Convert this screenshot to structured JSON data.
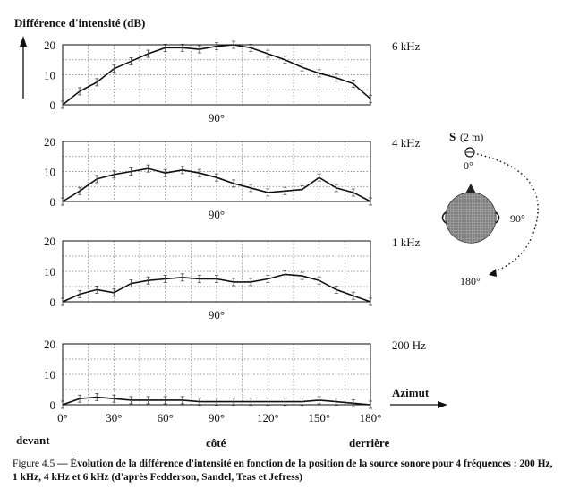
{
  "ylabel": "Différence d'intensité (dB)",
  "xlabel": "Azimut",
  "mid_tick_label": "90°",
  "x_ticks": [
    0,
    30,
    60,
    90,
    120,
    150,
    180
  ],
  "x_tick_labels": [
    "0°",
    "30°",
    "60°",
    "90°",
    "120°",
    "150°",
    "180°"
  ],
  "position_labels": {
    "front": "devant",
    "side": "côté",
    "back": "derrière"
  },
  "chart_data": [
    {
      "type": "line",
      "title": "6 kHz",
      "xlim": [
        0,
        180
      ],
      "ylim": [
        0,
        20
      ],
      "y_ticks": [
        0,
        10,
        20
      ],
      "grid": true,
      "x": [
        0,
        10,
        20,
        30,
        40,
        50,
        60,
        70,
        80,
        90,
        100,
        110,
        120,
        130,
        140,
        150,
        160,
        170,
        180
      ],
      "values": [
        0,
        4.5,
        7.5,
        12,
        14.5,
        17,
        19,
        19,
        18.5,
        19.5,
        20,
        19,
        17,
        15,
        12.5,
        10.5,
        9,
        7,
        2
      ]
    },
    {
      "type": "line",
      "title": "4 kHz",
      "xlim": [
        0,
        180
      ],
      "ylim": [
        0,
        20
      ],
      "y_ticks": [
        0,
        10,
        20
      ],
      "grid": true,
      "x": [
        0,
        10,
        20,
        30,
        40,
        50,
        60,
        70,
        80,
        90,
        100,
        110,
        120,
        130,
        140,
        150,
        160,
        170,
        180
      ],
      "values": [
        0,
        3.5,
        7.5,
        9,
        10,
        11,
        9.5,
        10.5,
        9.5,
        8,
        6,
        4.5,
        3,
        3.5,
        4,
        8,
        4.5,
        3,
        0
      ]
    },
    {
      "type": "line",
      "title": "1 kHz",
      "xlim": [
        0,
        180
      ],
      "ylim": [
        0,
        20
      ],
      "y_ticks": [
        0,
        10,
        20
      ],
      "grid": true,
      "x": [
        0,
        10,
        20,
        30,
        40,
        50,
        60,
        70,
        80,
        90,
        100,
        110,
        120,
        130,
        140,
        150,
        160,
        170,
        180
      ],
      "values": [
        0,
        2.5,
        4,
        3,
        6,
        7,
        7.5,
        8,
        7.5,
        7.5,
        6.5,
        6.5,
        7.5,
        9,
        8.5,
        7,
        4,
        2,
        0
      ]
    },
    {
      "type": "line",
      "title": "200 Hz",
      "xlim": [
        0,
        180
      ],
      "ylim": [
        0,
        20
      ],
      "y_ticks": [
        0,
        10,
        20
      ],
      "grid": true,
      "x": [
        0,
        10,
        20,
        30,
        40,
        50,
        60,
        70,
        80,
        90,
        100,
        110,
        120,
        130,
        140,
        150,
        160,
        170,
        180
      ],
      "values": [
        0,
        2,
        2.5,
        2,
        1.5,
        1.5,
        1.5,
        1.5,
        1,
        1,
        1,
        1,
        1,
        1,
        1,
        1.5,
        1,
        0.5,
        0
      ]
    }
  ],
  "diagram": {
    "source_label": "S",
    "distance_label": "(2 m)",
    "angle_labels": [
      "0°",
      "90°",
      "180°"
    ]
  },
  "caption": {
    "figure_number": "Figure 4.5",
    "text": "— Évolution de la différence d'intensité en fonction de la position de la source sonore pour 4 fréquences : 200 Hz, 1 kHz, 4 kHz et 6 kHz (d'après Fedderson, Sandel, Teas et Jefress)"
  }
}
